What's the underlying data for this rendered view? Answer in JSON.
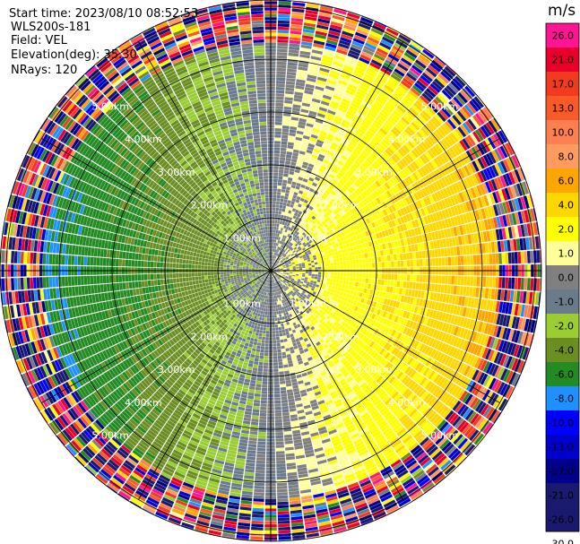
{
  "header": {
    "start_time": "Start time: 2023/08/10 08:52:53",
    "instrument": "WLS200s-181",
    "field": "Field: VEL",
    "elevation": "Elevation(deg): 35.30",
    "nrays": "NRays: 120"
  },
  "chart_data": {
    "type": "heatmap",
    "projection": "polar-ppi",
    "field": "VEL",
    "units": "m/s",
    "nrays": 120,
    "elevation_deg": 35.3,
    "range_rings_km": [
      1,
      2,
      3,
      4,
      5
    ],
    "ring_labels": [
      "1.00km",
      "2.00km",
      "3.00km",
      "4.00km",
      "5.00km"
    ],
    "max_range_km": 5.7,
    "spokes_deg": [
      0,
      30,
      60,
      90,
      120,
      150,
      180,
      210,
      240,
      270,
      300,
      330
    ],
    "grid": true,
    "colorbar": {
      "label": "m/s",
      "ticks": [
        "26.0",
        "21.0",
        "17.0",
        "13.0",
        "10.0",
        "8.0",
        "6.0",
        "4.0",
        "2.0",
        "1.0",
        "0.0",
        "-1.0",
        "-2.0",
        "-4.0",
        "-6.0",
        "-8.0",
        "-10.0",
        "-13.0",
        "-17.0",
        "-21.0",
        "-26.0",
        "-30.0"
      ],
      "colors": [
        "#ff1493",
        "#e8002a",
        "#f23a1e",
        "#fa5a28",
        "#ff7f50",
        "#ff9b5e",
        "#ffa500",
        "#ffd700",
        "#ffff00",
        "#ffff9a",
        "#808080",
        "#6b7b8c",
        "#9acd32",
        "#6b8e23",
        "#228b22",
        "#1e90ff",
        "#0000ff",
        "#0000cd",
        "#00008b",
        "#1a1a6e",
        "#191970"
      ]
    },
    "summary": {
      "positive_sector": "east (yellow, +2 to +6 m/s)",
      "negative_sector": "west (green, -2 to -6 m/s)",
      "noise_beyond_km": 4.3
    }
  }
}
